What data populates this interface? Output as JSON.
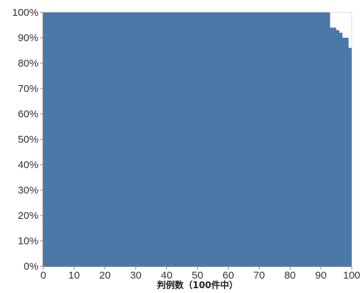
{
  "chart_data": {
    "type": "area",
    "xlabel": "判例数（100件中）",
    "ylabel": "",
    "xlim": [
      0,
      100
    ],
    "ylim": [
      0,
      1
    ],
    "x_ticks": [
      0,
      10,
      20,
      30,
      40,
      50,
      60,
      70,
      80,
      90,
      100
    ],
    "x_tick_labels": [
      "0",
      "10",
      "20",
      "30",
      "40",
      "50",
      "60",
      "70",
      "80",
      "90",
      "100"
    ],
    "y_ticks": [
      0,
      0.1,
      0.2,
      0.3,
      0.4,
      0.5,
      0.6,
      0.7,
      0.8,
      0.9,
      1.0
    ],
    "y_tick_labels": [
      "0%",
      "10%",
      "20%",
      "30%",
      "40%",
      "50%",
      "60%",
      "70%",
      "80%",
      "90%",
      "100%"
    ],
    "interpolation": "step-after",
    "color": "#4c78a8",
    "grid": false,
    "points": [
      {
        "x": 0,
        "y": 1.0
      },
      {
        "x": 93,
        "y": 0.94
      },
      {
        "x": 94,
        "y": 0.94
      },
      {
        "x": 95,
        "y": 0.93
      },
      {
        "x": 96,
        "y": 0.92
      },
      {
        "x": 97,
        "y": 0.9
      },
      {
        "x": 98,
        "y": 0.9
      },
      {
        "x": 99,
        "y": 0.86
      },
      {
        "x": 100,
        "y": 0.86
      }
    ]
  }
}
